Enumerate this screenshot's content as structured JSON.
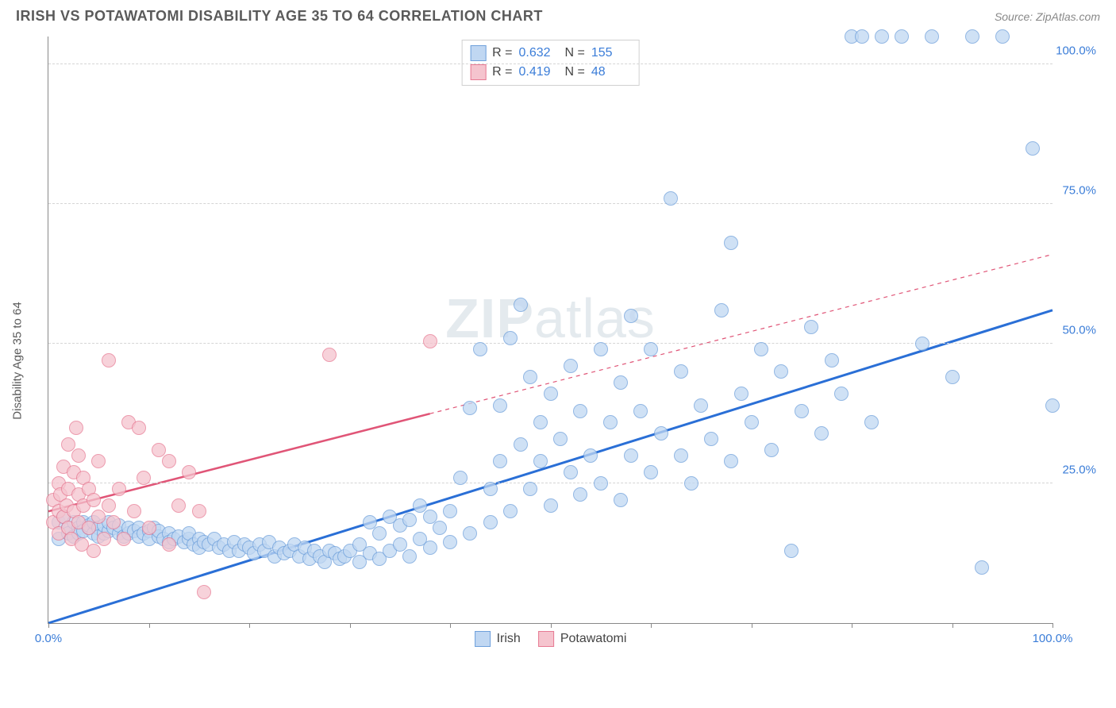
{
  "header": {
    "title": "IRISH VS POTAWATOMI DISABILITY AGE 35 TO 64 CORRELATION CHART",
    "source": "Source: ZipAtlas.com"
  },
  "ylabel": "Disability Age 35 to 64",
  "watermark": {
    "bold": "ZIP",
    "light": "atlas"
  },
  "chart": {
    "type": "scatter",
    "background_color": "#ffffff",
    "grid_color": "#d5d5d5",
    "axis_color": "#888888",
    "xlim": [
      0,
      100
    ],
    "ylim": [
      0,
      105
    ],
    "ytick_step": 25,
    "ytick_labels": [
      "25.0%",
      "50.0%",
      "75.0%",
      "100.0%"
    ],
    "ytick_values": [
      25,
      50,
      75,
      100
    ],
    "xtick_step": 10,
    "xtick_labels": {
      "0": "0.0%",
      "100": "100.0%"
    },
    "marker_radius": 9,
    "marker_stroke_width": 1.5,
    "series": [
      {
        "name": "Irish",
        "label": "Irish",
        "fill": "#c0d7f2",
        "stroke": "#6ea0db",
        "fill_opacity": 0.75,
        "R": "0.632",
        "N": "155",
        "trend": {
          "x1": 0,
          "y1": 0,
          "x2": 100,
          "y2": 56,
          "color": "#2a6fd6",
          "width": 3,
          "dash_after_x": null
        },
        "points": [
          [
            1,
            18
          ],
          [
            1,
            15
          ],
          [
            1.5,
            19
          ],
          [
            2,
            17
          ],
          [
            2,
            16
          ],
          [
            2.5,
            18
          ],
          [
            2.5,
            15.5
          ],
          [
            3,
            17
          ],
          [
            3,
            16
          ],
          [
            3.5,
            18
          ],
          [
            3.5,
            16.5
          ],
          [
            4,
            17
          ],
          [
            4,
            17.5
          ],
          [
            4.5,
            16
          ],
          [
            4.5,
            18
          ],
          [
            5,
            17
          ],
          [
            5,
            15.5
          ],
          [
            5.5,
            16
          ],
          [
            5.5,
            17.5
          ],
          [
            6,
            16.5
          ],
          [
            6,
            18
          ],
          [
            6.5,
            17
          ],
          [
            7,
            16
          ],
          [
            7,
            17.5
          ],
          [
            7.5,
            15.5
          ],
          [
            8,
            16
          ],
          [
            8,
            17
          ],
          [
            8.5,
            16.5
          ],
          [
            9,
            17
          ],
          [
            9,
            15.5
          ],
          [
            9.5,
            16
          ],
          [
            10,
            16.5
          ],
          [
            10,
            15
          ],
          [
            10.5,
            17
          ],
          [
            11,
            15.5
          ],
          [
            11,
            16.5
          ],
          [
            11.5,
            15
          ],
          [
            12,
            16
          ],
          [
            12,
            14.5
          ],
          [
            12.5,
            15
          ],
          [
            13,
            15.5
          ],
          [
            13.5,
            14.5
          ],
          [
            14,
            15
          ],
          [
            14,
            16
          ],
          [
            14.5,
            14
          ],
          [
            15,
            15
          ],
          [
            15,
            13.5
          ],
          [
            15.5,
            14.5
          ],
          [
            16,
            14
          ],
          [
            16.5,
            15
          ],
          [
            17,
            13.5
          ],
          [
            17.5,
            14
          ],
          [
            18,
            13
          ],
          [
            18.5,
            14.5
          ],
          [
            19,
            13
          ],
          [
            19.5,
            14
          ],
          [
            20,
            13.5
          ],
          [
            20.5,
            12.5
          ],
          [
            21,
            14
          ],
          [
            21.5,
            13
          ],
          [
            22,
            14.5
          ],
          [
            22.5,
            12
          ],
          [
            23,
            13.5
          ],
          [
            23.5,
            12.5
          ],
          [
            24,
            13
          ],
          [
            24.5,
            14
          ],
          [
            25,
            12
          ],
          [
            25.5,
            13.5
          ],
          [
            26,
            11.5
          ],
          [
            26.5,
            13
          ],
          [
            27,
            12
          ],
          [
            27.5,
            11
          ],
          [
            28,
            13
          ],
          [
            28.5,
            12.5
          ],
          [
            29,
            11.5
          ],
          [
            29.5,
            12
          ],
          [
            30,
            13
          ],
          [
            31,
            11
          ],
          [
            31,
            14
          ],
          [
            32,
            12.5
          ],
          [
            32,
            18
          ],
          [
            33,
            11.5
          ],
          [
            33,
            16
          ],
          [
            34,
            13
          ],
          [
            34,
            19
          ],
          [
            35,
            14
          ],
          [
            35,
            17.5
          ],
          [
            36,
            12
          ],
          [
            36,
            18.5
          ],
          [
            37,
            15
          ],
          [
            37,
            21
          ],
          [
            38,
            13.5
          ],
          [
            38,
            19
          ],
          [
            39,
            17
          ],
          [
            40,
            14.5
          ],
          [
            40,
            20
          ],
          [
            41,
            26
          ],
          [
            42,
            16
          ],
          [
            42,
            38.5
          ],
          [
            43,
            49
          ],
          [
            44,
            18
          ],
          [
            44,
            24
          ],
          [
            45,
            29
          ],
          [
            45,
            39
          ],
          [
            46,
            20
          ],
          [
            46,
            51
          ],
          [
            47,
            32
          ],
          [
            47,
            57
          ],
          [
            48,
            24
          ],
          [
            48,
            44
          ],
          [
            49,
            29
          ],
          [
            49,
            36
          ],
          [
            50,
            21
          ],
          [
            50,
            41
          ],
          [
            51,
            33
          ],
          [
            52,
            27
          ],
          [
            52,
            46
          ],
          [
            53,
            23
          ],
          [
            53,
            38
          ],
          [
            54,
            30
          ],
          [
            55,
            25
          ],
          [
            55,
            49
          ],
          [
            56,
            36
          ],
          [
            57,
            22
          ],
          [
            57,
            43
          ],
          [
            58,
            30
          ],
          [
            58,
            55
          ],
          [
            59,
            38
          ],
          [
            60,
            27
          ],
          [
            60,
            49
          ],
          [
            61,
            34
          ],
          [
            62,
            76
          ],
          [
            63,
            30
          ],
          [
            63,
            45
          ],
          [
            64,
            25
          ],
          [
            65,
            39
          ],
          [
            66,
            33
          ],
          [
            67,
            56
          ],
          [
            68,
            29
          ],
          [
            68,
            68
          ],
          [
            69,
            41
          ],
          [
            70,
            36
          ],
          [
            71,
            49
          ],
          [
            72,
            31
          ],
          [
            73,
            45
          ],
          [
            74,
            13
          ],
          [
            75,
            38
          ],
          [
            76,
            53
          ],
          [
            77,
            34
          ],
          [
            78,
            47
          ],
          [
            79,
            41
          ],
          [
            80,
            105
          ],
          [
            81,
            105
          ],
          [
            82,
            36
          ],
          [
            83,
            105
          ],
          [
            85,
            105
          ],
          [
            87,
            50
          ],
          [
            88,
            105
          ],
          [
            90,
            44
          ],
          [
            92,
            105
          ],
          [
            93,
            10
          ],
          [
            95,
            105
          ],
          [
            98,
            85
          ],
          [
            100,
            39
          ]
        ]
      },
      {
        "name": "Potawatomi",
        "label": "Potawatomi",
        "fill": "#f5c4ce",
        "stroke": "#e77a93",
        "fill_opacity": 0.75,
        "R": "0.419",
        "N": "48",
        "trend": {
          "x1": 0,
          "y1": 20,
          "x2": 100,
          "y2": 66,
          "color": "#e05577",
          "width": 2.5,
          "dash_after_x": 38
        },
        "points": [
          [
            0.5,
            18
          ],
          [
            0.5,
            22
          ],
          [
            1,
            16
          ],
          [
            1,
            20
          ],
          [
            1,
            25
          ],
          [
            1.2,
            23
          ],
          [
            1.5,
            19
          ],
          [
            1.5,
            28
          ],
          [
            1.8,
            21
          ],
          [
            2,
            17
          ],
          [
            2,
            24
          ],
          [
            2,
            32
          ],
          [
            2.3,
            15
          ],
          [
            2.5,
            20
          ],
          [
            2.5,
            27
          ],
          [
            2.8,
            35
          ],
          [
            3,
            18
          ],
          [
            3,
            23
          ],
          [
            3,
            30
          ],
          [
            3.3,
            14
          ],
          [
            3.5,
            21
          ],
          [
            3.5,
            26
          ],
          [
            4,
            17
          ],
          [
            4,
            24
          ],
          [
            4.5,
            13
          ],
          [
            4.5,
            22
          ],
          [
            5,
            19
          ],
          [
            5,
            29
          ],
          [
            5.5,
            15
          ],
          [
            6,
            47
          ],
          [
            6,
            21
          ],
          [
            6.5,
            18
          ],
          [
            7,
            24
          ],
          [
            7.5,
            15
          ],
          [
            8,
            36
          ],
          [
            8.5,
            20
          ],
          [
            9,
            35
          ],
          [
            9.5,
            26
          ],
          [
            10,
            17
          ],
          [
            11,
            31
          ],
          [
            12,
            14
          ],
          [
            12,
            29
          ],
          [
            13,
            21
          ],
          [
            14,
            27
          ],
          [
            15,
            20
          ],
          [
            15.5,
            5.5
          ],
          [
            28,
            48
          ],
          [
            38,
            50.5
          ]
        ]
      }
    ]
  },
  "legend_top": {
    "R_label": "R =",
    "N_label": "N ="
  },
  "legend_bottom": {
    "series": [
      "Irish",
      "Potawatomi"
    ]
  }
}
